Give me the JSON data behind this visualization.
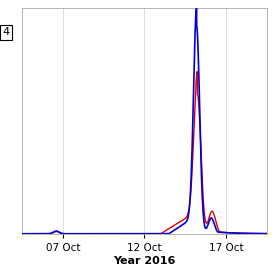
{
  "title": "",
  "xlabel": "Year 2016",
  "ylabel": "",
  "xlim_days": [
    4.5,
    19.5
  ],
  "ylim": [
    0,
    1.0
  ],
  "x_ticks_days": [
    7,
    12,
    17
  ],
  "x_tick_labels": [
    "07 Oct",
    "12 Oct",
    "17 Oct"
  ],
  "background_color": "#ffffff",
  "grid_color": "#d0d0d0",
  "line_blue": "#0000dd",
  "line_red": "#dd0000",
  "legend_label": "4",
  "figsize": [
    2.75,
    2.75
  ],
  "dpi": 100
}
